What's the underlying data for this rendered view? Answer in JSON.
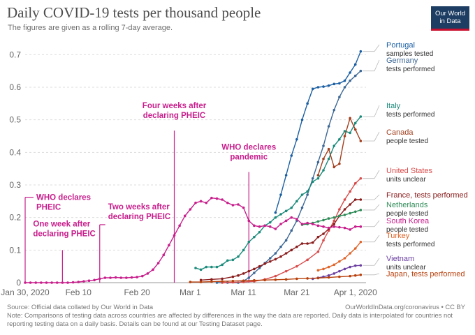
{
  "header": {
    "title": "Daily COVID-19 tests per thousand people",
    "subtitle": "The figures are given as a rolling 7-day average.",
    "logo_line1": "Our World",
    "logo_line2": "in Data"
  },
  "footer": {
    "source": "Source: Official data collated by Our World in Data",
    "url": "OurWorldInData.org/coronavirus • CC BY",
    "note": "Note: Comparisons of testing data across countries are affected by differences in the way the data are reported. Daily data is interpolated for countries not reporting testing data on a daily basis. Details can be found at our Testing Dataset page."
  },
  "colors": {
    "portugal": "#1a5fa3",
    "germany": "#3c6795",
    "italy": "#1a8a7a",
    "canada": "#a2401f",
    "united_states": "#d94c4c",
    "france": "#8a1c1c",
    "netherlands": "#2e8b57",
    "south_korea": "#c81e8c",
    "turkey": "#e0652a",
    "vietnam": "#6b3fa0",
    "japan": "#b8400c",
    "annotation": "#c81e8c"
  },
  "chart_data": {
    "type": "line",
    "title": "Daily COVID-19 tests per thousand people",
    "subtitle": "The figures are given as a rolling 7-day average.",
    "xlabel": "",
    "ylabel": "",
    "x_unit": "days since Jan 30, 2020",
    "xlim": [
      0,
      64
    ],
    "ylim": [
      0,
      0.72
    ],
    "y_ticks": [
      0,
      0.1,
      0.2,
      0.3,
      0.4,
      0.5,
      0.6,
      0.7
    ],
    "y_tick_labels": [
      "0",
      "0.1",
      "0.2",
      "0.3",
      "0.4",
      "0.5",
      "0.6",
      "0.7"
    ],
    "x_ticks": [
      0,
      10,
      21,
      31,
      41,
      51,
      62
    ],
    "x_tick_labels": [
      "Jan 30, 2020",
      "Feb 10",
      "Feb 20",
      "Mar 1",
      "Mar 11",
      "Mar 21",
      "Apr 1, 2020"
    ],
    "grid": true,
    "series": [
      {
        "key": "portugal",
        "name": "Portugal",
        "note": "samples tested",
        "x": [
          47,
          48,
          49,
          50,
          51,
          52,
          53,
          54,
          55,
          56,
          57,
          58,
          59,
          60,
          61,
          62,
          63
        ],
        "y": [
          0.215,
          0.27,
          0.33,
          0.39,
          0.44,
          0.5,
          0.55,
          0.595,
          0.6,
          0.602,
          0.605,
          0.61,
          0.612,
          0.62,
          0.645,
          0.67,
          0.71
        ]
      },
      {
        "key": "germany",
        "name": "Germany",
        "note": "tests performed",
        "x": [
          36,
          38,
          40,
          41,
          42,
          43,
          44,
          45,
          46,
          47,
          48,
          49,
          50,
          51,
          52,
          53,
          54,
          55,
          56,
          57,
          58,
          59,
          60,
          61,
          62,
          63
        ],
        "y": [
          0.0,
          0.0,
          0.0,
          0.005,
          0.015,
          0.03,
          0.045,
          0.06,
          0.075,
          0.09,
          0.11,
          0.13,
          0.16,
          0.19,
          0.23,
          0.27,
          0.32,
          0.37,
          0.42,
          0.48,
          0.53,
          0.57,
          0.6,
          0.62,
          0.635,
          0.65
        ]
      },
      {
        "key": "italy",
        "name": "Italy",
        "note": "tests performed",
        "x": [
          32,
          33,
          34,
          35,
          36,
          37,
          38,
          39,
          40,
          41,
          42,
          43,
          44,
          45,
          46,
          47,
          48,
          49,
          50,
          51,
          52,
          53,
          54,
          55,
          56,
          57,
          58,
          59,
          60,
          61,
          62,
          63
        ],
        "y": [
          0.045,
          0.04,
          0.048,
          0.048,
          0.048,
          0.055,
          0.068,
          0.07,
          0.08,
          0.1,
          0.125,
          0.14,
          0.155,
          0.175,
          0.185,
          0.2,
          0.21,
          0.22,
          0.23,
          0.25,
          0.27,
          0.28,
          0.31,
          0.32,
          0.345,
          0.38,
          0.42,
          0.44,
          0.465,
          0.46,
          0.49,
          0.51
        ]
      },
      {
        "key": "canada",
        "name": "Canada",
        "note": "people tested",
        "x": [
          55,
          56,
          57,
          58,
          59,
          60,
          61,
          62,
          63
        ],
        "y": [
          0.33,
          0.38,
          0.41,
          0.355,
          0.365,
          0.45,
          0.505,
          0.47,
          0.435
        ]
      },
      {
        "key": "united_states",
        "name": "United States",
        "note": "units unclear",
        "x": [
          37,
          39,
          41,
          43,
          45,
          47,
          49,
          51,
          53,
          55,
          56,
          57,
          58,
          59,
          60,
          61,
          62,
          63
        ],
        "y": [
          0.0,
          0.001,
          0.002,
          0.004,
          0.01,
          0.02,
          0.035,
          0.05,
          0.07,
          0.095,
          0.13,
          0.16,
          0.19,
          0.225,
          0.255,
          0.28,
          0.305,
          0.32
        ]
      },
      {
        "key": "france",
        "name": "France, tests performed",
        "note": "",
        "x": [
          33,
          35,
          37,
          39,
          40,
          41,
          42,
          43,
          44,
          45,
          46,
          47,
          48,
          49,
          50,
          51,
          52,
          53,
          54,
          55,
          56,
          57,
          58,
          59,
          60,
          61,
          62,
          63
        ],
        "y": [
          0.008,
          0.01,
          0.012,
          0.018,
          0.022,
          0.028,
          0.035,
          0.042,
          0.05,
          0.058,
          0.065,
          0.072,
          0.08,
          0.09,
          0.1,
          0.11,
          0.12,
          0.12,
          0.123,
          0.14,
          0.15,
          0.165,
          0.18,
          0.205,
          0.225,
          0.24,
          0.255,
          0.255
        ]
      },
      {
        "key": "netherlands",
        "name": "Netherlands",
        "note": "people tested",
        "x": [
          52,
          53,
          54,
          55,
          56,
          57,
          58,
          59,
          60,
          61,
          62,
          63
        ],
        "y": [
          0.178,
          0.18,
          0.183,
          0.188,
          0.192,
          0.197,
          0.2,
          0.205,
          0.208,
          0.213,
          0.218,
          0.223
        ]
      },
      {
        "key": "south_korea",
        "name": "South Korea",
        "note": "people tested",
        "x": [
          0,
          1,
          2,
          3,
          4,
          5,
          6,
          7,
          8,
          9,
          10,
          11,
          12,
          13,
          14,
          15,
          16,
          17,
          18,
          19,
          20,
          21,
          22,
          23,
          24,
          25,
          26,
          27,
          28,
          29,
          30,
          31,
          32,
          33,
          34,
          35,
          36,
          37,
          38,
          39,
          40,
          41,
          42,
          43,
          44,
          45,
          46,
          47,
          48,
          49,
          50,
          51,
          52,
          53,
          54,
          55,
          56,
          57,
          58,
          59,
          60,
          61,
          62,
          63
        ],
        "y": [
          0.0,
          0.0,
          0.0,
          0.0,
          0.0,
          0.0,
          0.0,
          0.0,
          0.0,
          0.001,
          0.002,
          0.004,
          0.006,
          0.008,
          0.012,
          0.015,
          0.015,
          0.016,
          0.015,
          0.015,
          0.016,
          0.017,
          0.02,
          0.028,
          0.04,
          0.06,
          0.085,
          0.115,
          0.145,
          0.175,
          0.205,
          0.225,
          0.245,
          0.25,
          0.245,
          0.26,
          0.258,
          0.255,
          0.245,
          0.238,
          0.24,
          0.23,
          0.19,
          0.175,
          0.172,
          0.175,
          0.172,
          0.165,
          0.18,
          0.19,
          0.2,
          0.195,
          0.18,
          0.183,
          0.18,
          0.175,
          0.172,
          0.168,
          0.172,
          0.17,
          0.168,
          0.163,
          0.172,
          0.172
        ]
      },
      {
        "key": "turkey",
        "name": "Turkey",
        "note": "tests performed",
        "x": [
          55,
          56,
          57,
          58,
          59,
          60,
          61,
          62,
          63
        ],
        "y": [
          0.038,
          0.042,
          0.048,
          0.055,
          0.065,
          0.075,
          0.09,
          0.105,
          0.125
        ]
      },
      {
        "key": "vietnam",
        "name": "Vietnam",
        "note": "units unclear",
        "x": [
          54,
          55,
          56,
          57,
          58,
          59,
          60,
          61,
          62,
          63
        ],
        "y": [
          0.012,
          0.015,
          0.018,
          0.022,
          0.028,
          0.035,
          0.042,
          0.048,
          0.052,
          0.053
        ]
      },
      {
        "key": "japan",
        "name": "Japan, tests performed",
        "note": "",
        "x": [
          31,
          33,
          35,
          37,
          39,
          41,
          43,
          45,
          47,
          49,
          51,
          53,
          55,
          57,
          59,
          61,
          62,
          63
        ],
        "y": [
          0.002,
          0.002,
          0.003,
          0.004,
          0.005,
          0.006,
          0.007,
          0.008,
          0.009,
          0.01,
          0.012,
          0.013,
          0.014,
          0.016,
          0.018,
          0.02,
          0.022,
          0.024
        ]
      }
    ],
    "annotations": [
      {
        "text_lines": [
          "WHO declares",
          "PHEIC"
        ],
        "x": 0,
        "y_top": 0.262
      },
      {
        "text_lines": [
          "One week after",
          "declaring PHEIC"
        ],
        "x": 7,
        "y_top": 0.1
      },
      {
        "text_lines": [
          "Two weeks after",
          "declaring PHEIC"
        ],
        "x": 14,
        "y_top": 0.178
      },
      {
        "text_lines": [
          "Four weeks after",
          "declaring PHEIC"
        ],
        "x": 28,
        "y_top": 0.467
      },
      {
        "text_lines": [
          "WHO declares",
          "pandemic"
        ],
        "x": 42,
        "y_top": 0.34
      }
    ]
  }
}
